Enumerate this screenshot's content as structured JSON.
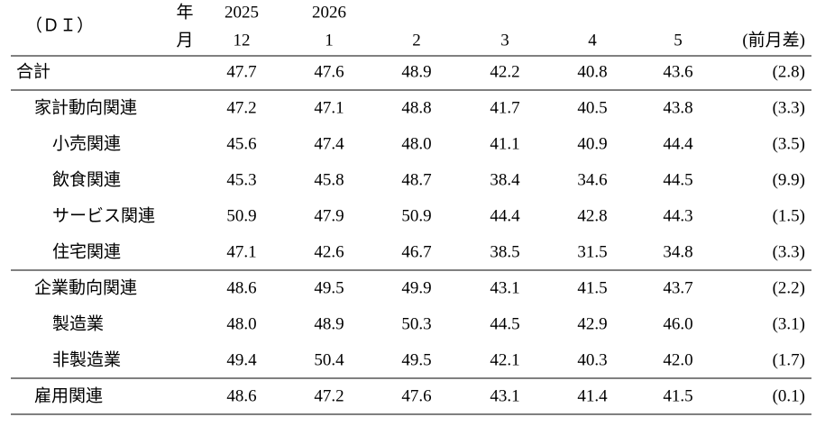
{
  "header": {
    "unit": "（ＤＩ）",
    "year_label": "年",
    "month_label": "月",
    "years": [
      "2025",
      "2026"
    ],
    "months": [
      "12",
      "1",
      "2",
      "3",
      "4",
      "5"
    ],
    "diff_label": "(前月差)"
  },
  "total": {
    "label": "合計",
    "values": [
      "47.7",
      "47.6",
      "48.9",
      "42.2",
      "40.8",
      "43.6"
    ],
    "diff": "(2.8)"
  },
  "groups": [
    {
      "label": "家計動向関連",
      "values": [
        "47.2",
        "47.1",
        "48.8",
        "41.7",
        "40.5",
        "43.8"
      ],
      "diff": "(3.3)",
      "items": [
        {
          "label": "小売関連",
          "values": [
            "45.6",
            "47.4",
            "48.0",
            "41.1",
            "40.9",
            "44.4"
          ],
          "diff": "(3.5)"
        },
        {
          "label": "飲食関連",
          "values": [
            "45.3",
            "45.8",
            "48.7",
            "38.4",
            "34.6",
            "44.5"
          ],
          "diff": "(9.9)"
        },
        {
          "label": "サービス関連",
          "values": [
            "50.9",
            "47.9",
            "50.9",
            "44.4",
            "42.8",
            "44.3"
          ],
          "diff": "(1.5)"
        },
        {
          "label": "住宅関連",
          "values": [
            "47.1",
            "42.6",
            "46.7",
            "38.5",
            "31.5",
            "34.8"
          ],
          "diff": "(3.3)"
        }
      ]
    },
    {
      "label": "企業動向関連",
      "values": [
        "48.6",
        "49.5",
        "49.9",
        "43.1",
        "41.5",
        "43.7"
      ],
      "diff": "(2.2)",
      "items": [
        {
          "label": "製造業",
          "values": [
            "48.0",
            "48.9",
            "50.3",
            "44.5",
            "42.9",
            "46.0"
          ],
          "diff": "(3.1)"
        },
        {
          "label": "非製造業",
          "values": [
            "49.4",
            "50.4",
            "49.5",
            "42.1",
            "40.3",
            "42.0"
          ],
          "diff": "(1.7)"
        }
      ]
    },
    {
      "label": "雇用関連",
      "values": [
        "48.6",
        "47.2",
        "47.6",
        "43.1",
        "41.4",
        "41.5"
      ],
      "diff": "(0.1)",
      "items": []
    }
  ]
}
